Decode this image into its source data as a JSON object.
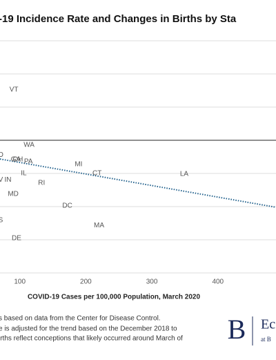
{
  "chart_data": {
    "type": "scatter",
    "title": "-19 Incidence Rate and Changes in Births by Sta",
    "x_label": "COVID-19 Cases per 100,000 Population, March 2020",
    "xlim": [
      70,
      488
    ],
    "xticks": [
      100,
      200,
      300,
      400
    ],
    "ylim": [
      -8,
      7
    ],
    "yticks": [
      -8,
      -6,
      -4,
      -2,
      0,
      2,
      4,
      6
    ],
    "grid": true,
    "points": {
      "color": "#555555",
      "labels": [
        "VT",
        "WA",
        "O",
        "GA",
        "OH",
        "PA",
        "MI",
        "IL",
        "CT",
        "LA",
        "V",
        "IN",
        "RI",
        "MD",
        "DC",
        "S",
        "MA",
        "DE"
      ],
      "x": [
        91,
        114,
        71,
        94,
        97,
        113,
        189,
        106,
        217,
        349,
        71,
        82,
        133,
        90,
        172,
        71,
        220,
        95
      ],
      "y": [
        3.04,
        -0.29,
        -0.88,
        -1.17,
        -1.17,
        -1.29,
        -1.46,
        -2.0,
        -2.0,
        -2.04,
        -2.38,
        -2.38,
        -2.58,
        -3.25,
        -3.96,
        -4.83,
        -5.13,
        -5.92
      ]
    },
    "trendline": {
      "x": [
        70,
        488
      ],
      "y": [
        -1.13,
        -4.04
      ],
      "color": "#1f5f8b"
    }
  },
  "footnotes": [
    "s based on data from the Center for Disease Control.",
    "e is adjusted for the trend based on the December 2018 to",
    "irths reflect conceptions that likely occurred around March of"
  ],
  "logo": {
    "letter": "B",
    "text": "Ec",
    "sub": "at B"
  }
}
